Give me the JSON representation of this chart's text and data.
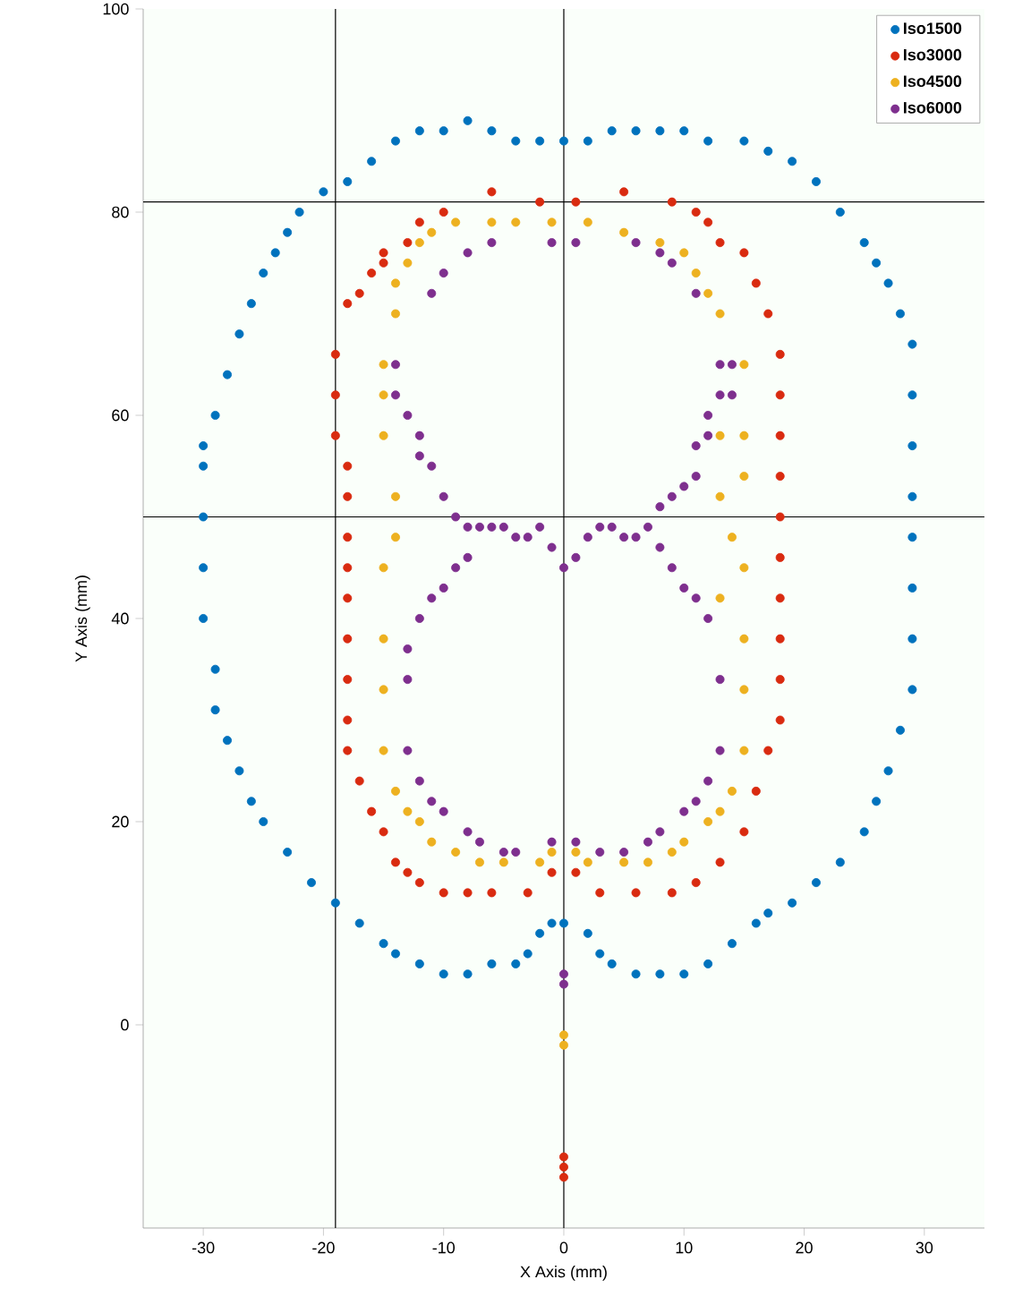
{
  "chart_data": {
    "type": "scatter",
    "xlabel": "X Axis (mm)",
    "ylabel": "Y Axis (mm)",
    "xlim": [
      -35,
      35
    ],
    "ylim": [
      -20,
      100
    ],
    "xticks": [
      -30,
      -20,
      -10,
      0,
      10,
      20,
      30
    ],
    "yticks": [
      0,
      20,
      40,
      60,
      80,
      100
    ],
    "grid": false,
    "legend": "top right",
    "marker": "circle",
    "ref_lines": [
      {
        "axis": "x",
        "value": -19,
        "color": "#000000"
      },
      {
        "axis": "x",
        "value": 0,
        "color": "#000000"
      },
      {
        "axis": "y",
        "value": 81,
        "color": "#000000"
      },
      {
        "axis": "y",
        "value": 50,
        "color": "#000000"
      }
    ],
    "series": [
      {
        "name": "Iso1500",
        "color": "#0072bd",
        "x": [
          -30,
          -30,
          -30,
          -30,
          -29,
          -29,
          -28,
          -27,
          -26,
          -25,
          -23,
          -21,
          -19,
          -17,
          -15,
          -14,
          -12,
          -10,
          -8,
          -6,
          -4,
          -3,
          -2,
          -1,
          0,
          2,
          3,
          4,
          6,
          8,
          10,
          12,
          14,
          16,
          17,
          19,
          21,
          23,
          25,
          26,
          27,
          28,
          29,
          29,
          29,
          29,
          29,
          29,
          29,
          29,
          28,
          27,
          26,
          25,
          23,
          21,
          19,
          17,
          15,
          12,
          10,
          8,
          6,
          4,
          2,
          0,
          -2,
          -4,
          -6,
          -8,
          -10,
          -12,
          -14,
          -16,
          -18,
          -20,
          -22,
          -23,
          -24,
          -25,
          -26,
          -27,
          -28,
          -29,
          -30
        ],
        "values": [
          55,
          50,
          45,
          40,
          35,
          31,
          28,
          25,
          22,
          20,
          17,
          14,
          12,
          10,
          8,
          7,
          6,
          5,
          5,
          6,
          6,
          7,
          9,
          10,
          10,
          9,
          7,
          6,
          5,
          5,
          5,
          6,
          8,
          10,
          11,
          12,
          14,
          16,
          19,
          22,
          25,
          29,
          33,
          38,
          43,
          48,
          52,
          57,
          62,
          67,
          70,
          73,
          75,
          77,
          80,
          83,
          85,
          86,
          87,
          87,
          88,
          88,
          88,
          88,
          87,
          87,
          87,
          87,
          88,
          89,
          88,
          88,
          87,
          85,
          83,
          82,
          80,
          78,
          76,
          74,
          71,
          68,
          64,
          60,
          57
        ]
      },
      {
        "name": "Iso3000",
        "color": "#d92b10",
        "x": [
          -19,
          -19,
          -19,
          -18,
          -18,
          -18,
          -18,
          -18,
          -18,
          -18,
          -18,
          -18,
          -17,
          -16,
          -15,
          -14,
          -13,
          -12,
          -10,
          -8,
          -6,
          -3,
          -1,
          1,
          3,
          6,
          9,
          11,
          13,
          15,
          16,
          17,
          18,
          18,
          18,
          18,
          18,
          18,
          18,
          18,
          18,
          18,
          17,
          16,
          15,
          13,
          12,
          11,
          9,
          5,
          1,
          -2,
          -6,
          -10,
          -12,
          -13,
          -15,
          -15,
          -16,
          -17,
          -18,
          0,
          0,
          0
        ],
        "values": [
          66,
          62,
          58,
          55,
          52,
          48,
          45,
          42,
          38,
          34,
          30,
          27,
          24,
          21,
          19,
          16,
          15,
          14,
          13,
          13,
          13,
          13,
          15,
          15,
          13,
          13,
          13,
          14,
          16,
          19,
          23,
          27,
          30,
          34,
          38,
          42,
          46,
          50,
          54,
          58,
          62,
          66,
          70,
          73,
          76,
          77,
          79,
          80,
          81,
          82,
          81,
          81,
          82,
          80,
          79,
          77,
          76,
          75,
          74,
          72,
          71,
          -13,
          -14,
          -15
        ]
      },
      {
        "name": "Iso4500",
        "color": "#edb120",
        "x": [
          -15,
          -15,
          -15,
          -14,
          -14,
          -15,
          -15,
          -15,
          -15,
          -14,
          -13,
          -12,
          -11,
          -9,
          -7,
          -5,
          -2,
          -1,
          1,
          2,
          5,
          7,
          9,
          10,
          12,
          13,
          14,
          15,
          15,
          15,
          15,
          14,
          13,
          13,
          13,
          15,
          15,
          15,
          13,
          12,
          11,
          10,
          8,
          5,
          2,
          -1,
          -4,
          -6,
          -9,
          -11,
          -12,
          -13,
          -14,
          -14,
          0,
          0
        ],
        "values": [
          65,
          62,
          58,
          52,
          48,
          45,
          38,
          33,
          27,
          23,
          21,
          20,
          18,
          17,
          16,
          16,
          16,
          17,
          17,
          16,
          16,
          16,
          17,
          18,
          20,
          21,
          23,
          27,
          33,
          38,
          45,
          48,
          52,
          58,
          42,
          65,
          58,
          54,
          70,
          72,
          74,
          76,
          77,
          78,
          79,
          79,
          79,
          79,
          79,
          78,
          77,
          75,
          73,
          70,
          -1,
          -2
        ]
      },
      {
        "name": "Iso6000",
        "color": "#7e2f8e",
        "x": [
          -1,
          -6,
          -8,
          -10,
          -11,
          -14,
          -14,
          -13,
          -12,
          -12,
          -11,
          -10,
          -9,
          -8,
          -7,
          -6,
          -5,
          -4,
          -3,
          -2,
          -1,
          0,
          1,
          2,
          3,
          4,
          5,
          6,
          7,
          8,
          9,
          10,
          11,
          11,
          12,
          12,
          13,
          13,
          14,
          14,
          11,
          9,
          8,
          6,
          1,
          -8,
          -9,
          -10,
          -11,
          -12,
          -13,
          -13,
          -13,
          -12,
          -11,
          -10,
          -8,
          -7,
          -5,
          -4,
          -1,
          1,
          3,
          5,
          7,
          8,
          10,
          11,
          12,
          13,
          13,
          12,
          11,
          10,
          9,
          8,
          0,
          0
        ],
        "values": [
          77,
          77,
          76,
          74,
          72,
          65,
          62,
          60,
          58,
          56,
          55,
          52,
          50,
          49,
          49,
          49,
          49,
          48,
          48,
          49,
          47,
          45,
          46,
          48,
          49,
          49,
          48,
          48,
          49,
          51,
          52,
          53,
          54,
          57,
          58,
          60,
          62,
          65,
          62,
          65,
          72,
          75,
          76,
          77,
          77,
          46,
          45,
          43,
          42,
          40,
          37,
          34,
          27,
          24,
          22,
          21,
          19,
          18,
          17,
          17,
          18,
          18,
          17,
          17,
          18,
          19,
          21,
          22,
          24,
          27,
          34,
          40,
          42,
          43,
          45,
          47,
          4,
          5
        ]
      }
    ]
  }
}
